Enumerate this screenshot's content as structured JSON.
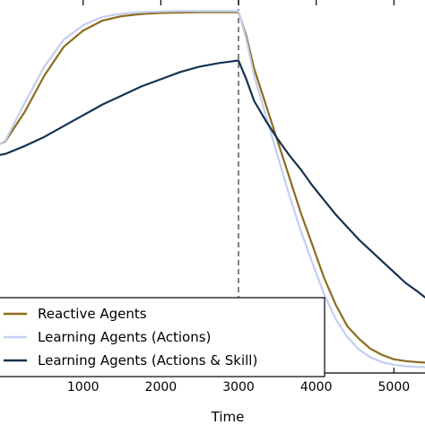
{
  "chart_data": {
    "type": "line",
    "title": "",
    "xlabel": "Time",
    "ylabel": "",
    "xlim": [
      -70,
      5400
    ],
    "ylim": [
      0,
      1
    ],
    "xticks": [
      1000,
      2000,
      3000,
      4000,
      5000
    ],
    "xtick_labels": [
      "1000",
      "2000",
      "3000",
      "4000",
      "5000"
    ],
    "grid": false,
    "legend": "lower-left",
    "vline": {
      "x": 3000,
      "style": "dashed",
      "color": "#666666"
    },
    "series": [
      {
        "name": "Reactive Agents",
        "color": "#8c6d1f",
        "x": [
          -70,
          0,
          250,
          500,
          750,
          1000,
          1250,
          1500,
          1750,
          2000,
          2250,
          2500,
          2750,
          3000,
          3100,
          3200,
          3350,
          3500,
          3650,
          3800,
          3950,
          4100,
          4250,
          4400,
          4550,
          4700,
          4850,
          5000,
          5150,
          5300,
          5400
        ],
        "y": [
          0.63,
          0.638,
          0.72,
          0.82,
          0.9,
          0.945,
          0.973,
          0.985,
          0.991,
          0.994,
          0.995,
          0.996,
          0.996,
          0.996,
          0.93,
          0.84,
          0.74,
          0.64,
          0.54,
          0.44,
          0.35,
          0.26,
          0.185,
          0.125,
          0.09,
          0.062,
          0.045,
          0.033,
          0.028,
          0.025,
          0.024
        ]
      },
      {
        "name": "Learning Agents (Actions)",
        "color": "#c2d0ee",
        "x": [
          -70,
          0,
          250,
          500,
          750,
          1000,
          1250,
          1500,
          1750,
          2000,
          2250,
          2500,
          2750,
          3000,
          3100,
          3200,
          3350,
          3500,
          3650,
          3800,
          3950,
          4100,
          4250,
          4400,
          4550,
          4700,
          4850,
          5000,
          5150,
          5300,
          5400
        ],
        "y": [
          0.63,
          0.64,
          0.745,
          0.845,
          0.92,
          0.96,
          0.983,
          0.992,
          0.996,
          0.998,
          0.999,
          0.999,
          0.999,
          0.999,
          0.92,
          0.82,
          0.71,
          0.6,
          0.49,
          0.39,
          0.3,
          0.215,
          0.145,
          0.095,
          0.06,
          0.038,
          0.025,
          0.018,
          0.014,
          0.012,
          0.011
        ]
      },
      {
        "name": "Learning Agents (Actions & Skill)",
        "color": "#163350",
        "x": [
          -70,
          0,
          250,
          500,
          750,
          1000,
          1250,
          1500,
          1750,
          2000,
          2250,
          2500,
          2750,
          3000,
          3100,
          3200,
          3350,
          3500,
          3650,
          3800,
          3950,
          4100,
          4250,
          4400,
          4550,
          4700,
          4850,
          5000,
          5150,
          5300,
          5400
        ],
        "y": [
          0.6,
          0.603,
          0.625,
          0.65,
          0.68,
          0.71,
          0.74,
          0.765,
          0.79,
          0.81,
          0.83,
          0.845,
          0.855,
          0.862,
          0.81,
          0.75,
          0.695,
          0.645,
          0.6,
          0.56,
          0.515,
          0.475,
          0.435,
          0.4,
          0.365,
          0.335,
          0.305,
          0.275,
          0.245,
          0.222,
          0.205
        ]
      }
    ]
  }
}
